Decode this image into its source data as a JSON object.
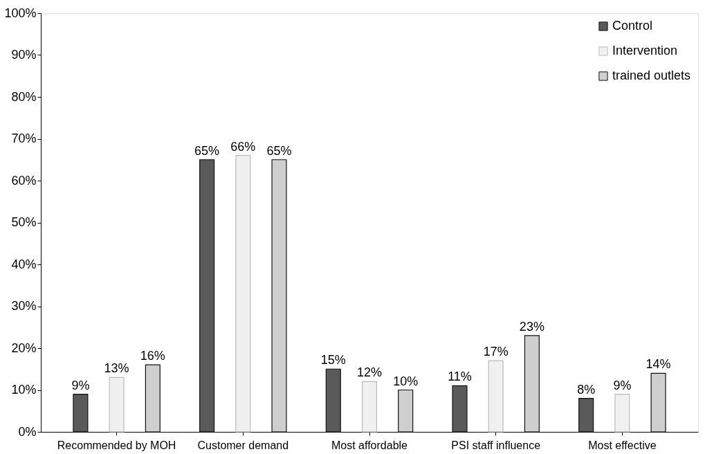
{
  "chart_data": {
    "type": "bar",
    "categories": [
      "Recommended by MOH",
      "Customer demand",
      "Most affordable",
      "PSI staff influence",
      "Most effective"
    ],
    "series": [
      {
        "name": "Control",
        "color": "#5a5a5a",
        "values": [
          9,
          65,
          15,
          11,
          8
        ],
        "value_labels": [
          "9%",
          "65%",
          "15%",
          "11%",
          "8%"
        ]
      },
      {
        "name": "Intervention",
        "color": "#f0f0f0",
        "values": [
          13,
          66,
          12,
          17,
          9
        ],
        "value_labels": [
          "13%",
          "66%",
          "12%",
          "17%",
          "9%"
        ]
      },
      {
        "name": "trained outlets",
        "color": "#cfcfcf",
        "values": [
          16,
          65,
          10,
          23,
          14
        ],
        "value_labels": [
          "16%",
          "65%",
          "10%",
          "23%",
          "14%"
        ]
      }
    ],
    "ylim": [
      0,
      100
    ],
    "yticks": [
      {
        "value": 0,
        "label": "0%"
      },
      {
        "value": 10,
        "label": "10%"
      },
      {
        "value": 20,
        "label": "20%"
      },
      {
        "value": 30,
        "label": "30%"
      },
      {
        "value": 40,
        "label": "40%"
      },
      {
        "value": 50,
        "label": "50%"
      },
      {
        "value": 60,
        "label": "60%"
      },
      {
        "value": 70,
        "label": "70%"
      },
      {
        "value": 80,
        "label": "80%"
      },
      {
        "value": 90,
        "label": "90%"
      },
      {
        "value": 100,
        "label": "100%"
      }
    ],
    "grid": false,
    "legend": "top right"
  }
}
